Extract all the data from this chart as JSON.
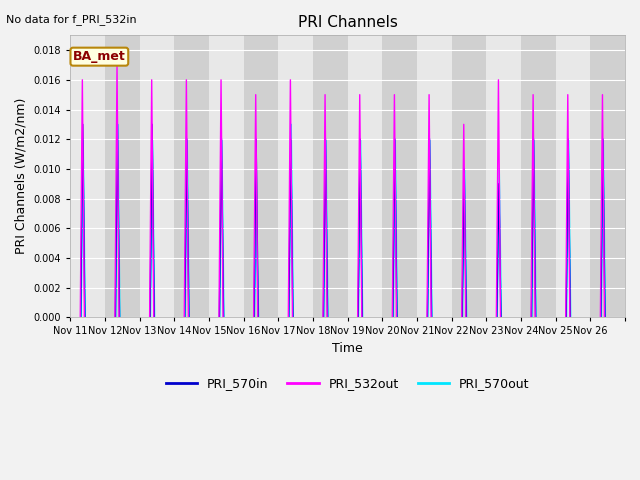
{
  "title": "PRI Channels",
  "ylabel": "PRI Channels (W/m2/nm)",
  "xlabel": "Time",
  "no_data_text": "No data for f_PRI_532in",
  "annotation_text": "BA_met",
  "yticks": [
    0.0,
    0.002,
    0.004,
    0.006,
    0.008,
    0.01,
    0.012,
    0.014,
    0.016,
    0.018
  ],
  "color_570in": "#0000CC",
  "color_532out": "#FF00FF",
  "color_570out": "#00E5FF",
  "line_width": 1.0,
  "bg_color_light": "#E8E8E8",
  "bg_color_dark": "#D0D0D0",
  "fig_bg_color": "#F2F2F2",
  "spike_peaks_532out": [
    0.016,
    0.017,
    0.016,
    0.016,
    0.016,
    0.015,
    0.016,
    0.015,
    0.015,
    0.015,
    0.015,
    0.013,
    0.016,
    0.015,
    0.015,
    0.015
  ],
  "spike_peaks_570in": [
    0.013,
    0.013,
    0.013,
    0.012,
    0.012,
    0.012,
    0.012,
    0.012,
    0.012,
    0.012,
    0.012,
    0.01,
    0.009,
    0.012,
    0.012,
    0.012
  ],
  "spike_peaks_570out": [
    0.012,
    0.013,
    0.012,
    0.012,
    0.012,
    0.006,
    0.013,
    0.012,
    0.012,
    0.012,
    0.012,
    0.01,
    0.01,
    0.012,
    0.012,
    0.012
  ],
  "num_days": 16,
  "start_day": 10,
  "xtick_labels": [
    "Nov 11",
    "Nov 12",
    "Nov 13",
    "Nov 14",
    "Nov 15",
    "Nov 16",
    "Nov 17",
    "Nov 18",
    "Nov 19",
    "Nov 20",
    "Nov 21",
    "Nov 22",
    "Nov 23",
    "Nov 24",
    "Nov 25",
    "Nov 26"
  ],
  "title_fontsize": 11,
  "label_fontsize": 9,
  "tick_fontsize": 7
}
